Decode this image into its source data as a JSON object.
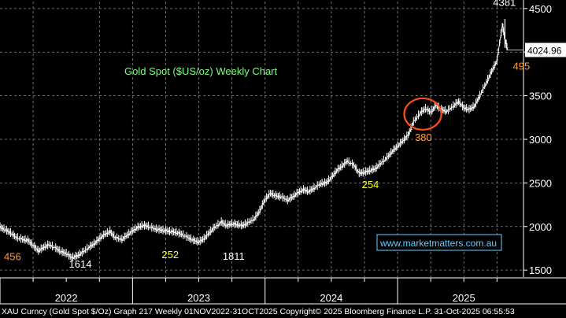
{
  "chart_data": {
    "type": "line",
    "title": "Gold Spot ($US/oz) Weekly Chart",
    "title_color": "#7CFC7C",
    "y_axis": {
      "ticks": [
        1500,
        2000,
        2500,
        3000,
        3500,
        4000,
        4500
      ],
      "tick_labels": [
        "1500",
        "2000",
        "2500",
        "3000",
        "3500",
        "",
        "4500"
      ],
      "ylim": [
        1420,
        4580
      ],
      "position": "right"
    },
    "x_axis": {
      "labels": [
        "2022",
        "2023",
        "2024",
        "2025"
      ],
      "label_positions": [
        2022.5,
        2023.5,
        2024.5,
        2025.5
      ],
      "xlim": [
        2022.0,
        2025.95
      ]
    },
    "grid": true,
    "last_price": {
      "value": 4024.96,
      "label": "4024.96"
    },
    "series": [
      {
        "color": "#ffffff",
        "x": [
          2022.0,
          2022.04,
          2022.08,
          2022.12,
          2022.17,
          2022.21,
          2022.25,
          2022.29,
          2022.33,
          2022.37,
          2022.42,
          2022.46,
          2022.5,
          2022.54,
          2022.58,
          2022.62,
          2022.67,
          2022.71,
          2022.75,
          2022.79,
          2022.83,
          2022.87,
          2022.92,
          2022.96,
          2023.0,
          2023.04,
          2023.08,
          2023.12,
          2023.17,
          2023.21,
          2023.25,
          2023.29,
          2023.33,
          2023.37,
          2023.42,
          2023.46,
          2023.5,
          2023.54,
          2023.58,
          2023.62,
          2023.67,
          2023.71,
          2023.75,
          2023.79,
          2023.83,
          2023.87,
          2023.92,
          2023.96,
          2024.0,
          2024.04,
          2024.08,
          2024.12,
          2024.17,
          2024.21,
          2024.25,
          2024.29,
          2024.33,
          2024.37,
          2024.42,
          2024.46,
          2024.5,
          2024.54,
          2024.58,
          2024.62,
          2024.67,
          2024.71,
          2024.75,
          2024.79,
          2024.83,
          2024.87,
          2024.92,
          2024.96,
          2025.0,
          2025.04,
          2025.08,
          2025.12,
          2025.17,
          2025.21,
          2025.25,
          2025.29,
          2025.33,
          2025.37,
          2025.42,
          2025.46,
          2025.5,
          2025.54,
          2025.58,
          2025.62,
          2025.67,
          2025.71,
          2025.75,
          2025.79,
          2025.81,
          2025.83
        ],
        "y": [
          1990,
          1960,
          1925,
          1875,
          1850,
          1840,
          1780,
          1720,
          1760,
          1790,
          1750,
          1710,
          1690,
          1640,
          1660,
          1700,
          1760,
          1800,
          1860,
          1910,
          1940,
          1870,
          1850,
          1900,
          1950,
          1990,
          2010,
          2000,
          1970,
          1960,
          1950,
          1940,
          1930,
          1910,
          1870,
          1840,
          1820,
          1860,
          1930,
          1990,
          2050,
          2010,
          2030,
          2020,
          2010,
          2040,
          2090,
          2180,
          2310,
          2380,
          2350,
          2340,
          2300,
          2340,
          2390,
          2420,
          2400,
          2440,
          2490,
          2500,
          2560,
          2640,
          2690,
          2750,
          2700,
          2610,
          2620,
          2640,
          2660,
          2720,
          2790,
          2860,
          2920,
          2980,
          3050,
          3200,
          3300,
          3350,
          3310,
          3390,
          3340,
          3320,
          3380,
          3430,
          3360,
          3340,
          3380,
          3500,
          3650,
          3780,
          3900,
          4310,
          4150,
          4024.96
        ]
      }
    ],
    "annotations": [
      {
        "text": "456",
        "x": 2022.03,
        "y": 1615,
        "color": "#FF9933"
      },
      {
        "text": "1614",
        "x": 2022.52,
        "y": 1530,
        "color": "#ffffff"
      },
      {
        "text": "252",
        "x": 2023.22,
        "y": 1635,
        "color": "#FFFF33"
      },
      {
        "text": "1811",
        "x": 2023.68,
        "y": 1620,
        "color": "#ffffff"
      },
      {
        "text": "254",
        "x": 2024.73,
        "y": 2440,
        "color": "#FFFF33"
      },
      {
        "text": "380",
        "x": 2025.13,
        "y": 2980,
        "color": "#FF9933"
      },
      {
        "text": "4381",
        "x": 2025.72,
        "y": 4530,
        "color": "#ffffff"
      },
      {
        "text": "495",
        "x": 2025.87,
        "y": 3800,
        "color": "#FF9933"
      }
    ],
    "highlight_ellipse": {
      "cx": 2025.19,
      "cy": 3290,
      "rx_years": 0.14,
      "ry_price": 180,
      "color": "#FF4D1A"
    }
  },
  "watermark": "www.marketmatters.com.au",
  "footer": "XAU Curncy (Gold Spot  $/Oz) Graph 217 Weekly 01NOV2022-31OCT2025  Copyright© 2025 Bloomberg Finance L.P.   31-Oct-2025 06:55:53"
}
